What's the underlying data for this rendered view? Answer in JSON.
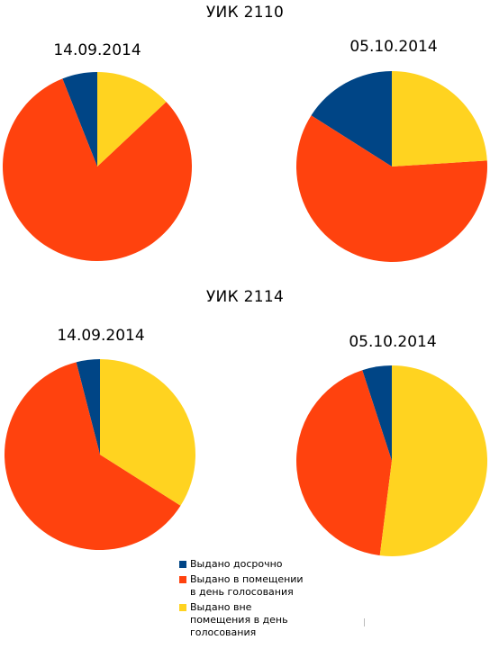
{
  "colors": {
    "early": "#004586",
    "on_day_inside": "#ff420e",
    "on_day_outside": "#ffd320"
  },
  "legend": [
    {
      "label_lines": [
        "Выдано досрочно"
      ],
      "color": "#004586"
    },
    {
      "label_lines": [
        "Выдано в помещении",
        "в день голосования"
      ],
      "color": "#ff420e"
    },
    {
      "label_lines": [
        "Выдано вне",
        "помещения в день",
        "голосования"
      ],
      "color": "#ffd320"
    }
  ],
  "chart_data": [
    {
      "type": "pie",
      "group": "УИК 2110",
      "title": "14.09.2014",
      "labels": [
        "Выдано досрочно",
        "Выдано в помещении в день голосования",
        "Выдано вне помещения в день голосования"
      ],
      "values": [
        6,
        81,
        13
      ]
    },
    {
      "type": "pie",
      "group": "УИК 2110",
      "title": "05.10.2014",
      "labels": [
        "Выдано досрочно",
        "Выдано в помещении в день голосования",
        "Выдано вне помещения в день голосования"
      ],
      "values": [
        16,
        60,
        24
      ]
    },
    {
      "type": "pie",
      "group": "УИК 2114",
      "title": "14.09.2014",
      "labels": [
        "Выдано досрочно",
        "Выдано в помещении в день голосования",
        "Выдано вне помещения в день голосования"
      ],
      "values": [
        4,
        62,
        34
      ]
    },
    {
      "type": "pie",
      "group": "УИК 2114",
      "title": "05.10.2014",
      "labels": [
        "Выдано досрочно",
        "Выдано в помещении в день голосования",
        "Выдано вне помещения в день голосования"
      ],
      "values": [
        5,
        43,
        52
      ]
    }
  ],
  "groups": [
    {
      "title": "УИК 2110"
    },
    {
      "title": "УИК 2114"
    }
  ]
}
